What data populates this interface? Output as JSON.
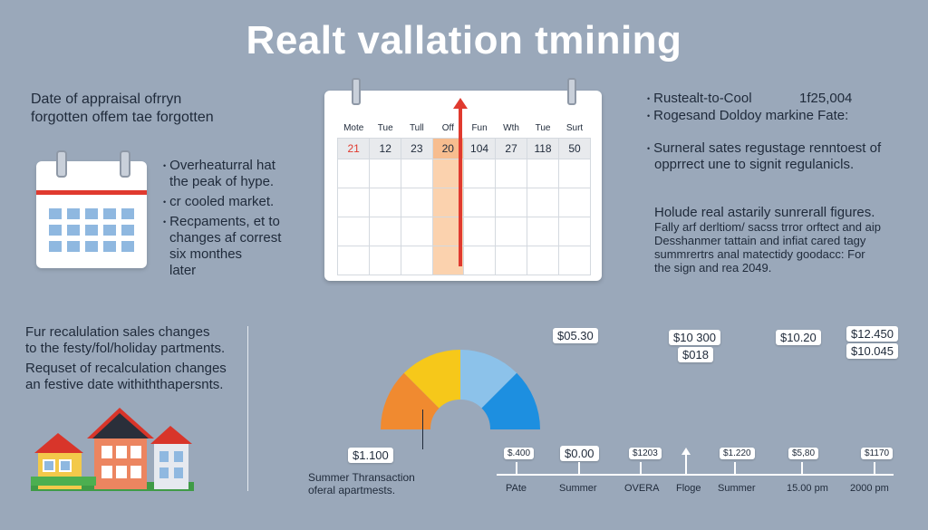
{
  "title": "Realt vallation tmining",
  "left_top": {
    "line1": "Date of appraisal ofrryn",
    "line2": "forgotten offem tae forgotten"
  },
  "left_bullets": [
    {
      "lines": [
        "Overheaturral hat",
        "the peak of hype."
      ]
    },
    {
      "lines": [
        "cr cooled market."
      ]
    },
    {
      "lines": [
        "Recpaments, et to",
        "changes af correst",
        "six monthes",
        "later"
      ]
    }
  ],
  "calendar": {
    "days": [
      "Mote",
      "Tue",
      "Tull",
      "Off",
      "Fun",
      "Wth",
      "Tue",
      "Surt"
    ],
    "dates": [
      "21",
      "12",
      "23",
      "20",
      "104",
      "27",
      "118",
      "50"
    ],
    "highlight_index": 3
  },
  "right_top": [
    {
      "text": "Rustealt-to-Cool",
      "value": "1f25,004"
    },
    {
      "text": "Rogesand Doldoy markine Fate:",
      "value": ""
    }
  ],
  "right_mid": {
    "line1": "Surneral sates regustage renntoest of",
    "line2": "opprrect une to signit regulanicls."
  },
  "right_bottom": {
    "line1": "Holude real astarily sunrerall figures.",
    "line2": "Fally arf derltiom/ sacss trror orftect and aip",
    "line3": "Desshanmer tattain and infiat cared tagy",
    "line4": "summrertrs anal matectidy goodacc: For",
    "line5": "the sign and rea 2049."
  },
  "bottom_left": {
    "p1_line1": "Fur recalulation sales changes",
    "p1_line2": "to the festy/fol/holiday partments.",
    "p2_line1": "Requset of recalculation changes",
    "p2_line2": "an festive date withiththapersnts."
  },
  "summer_note": {
    "line1": "Summer Thransaction",
    "line2": "oferal apartmests."
  },
  "gauge_tag": "$1.100",
  "upper_tags": [
    {
      "small": "",
      "main": "$05.30"
    },
    {
      "small": "$10 300",
      "main": "$018"
    },
    {
      "small": "",
      "main": "$10.20"
    },
    {
      "small": "$12.450",
      "main": "$10.045"
    }
  ],
  "timeline_tags": [
    "$.400",
    "$0.00",
    "$1203",
    "",
    "$1.220",
    "$5,80",
    "$1170"
  ],
  "timeline_labels": [
    "PAte",
    "Summer",
    "OVERA",
    "Floge",
    "Summer",
    "15.00 pm",
    "2000 pm"
  ],
  "colors": {
    "background": "#9aa8ba",
    "accent_red": "#e03a2f",
    "gauge_orange": "#f08a30",
    "gauge_yellow": "#f6c81a",
    "gauge_lightblue": "#8cc2ea",
    "gauge_blue": "#1d8fe0"
  },
  "icons": [
    "calendar-icon",
    "houses-illustration",
    "gauge-chart",
    "up-arrow-icon"
  ]
}
